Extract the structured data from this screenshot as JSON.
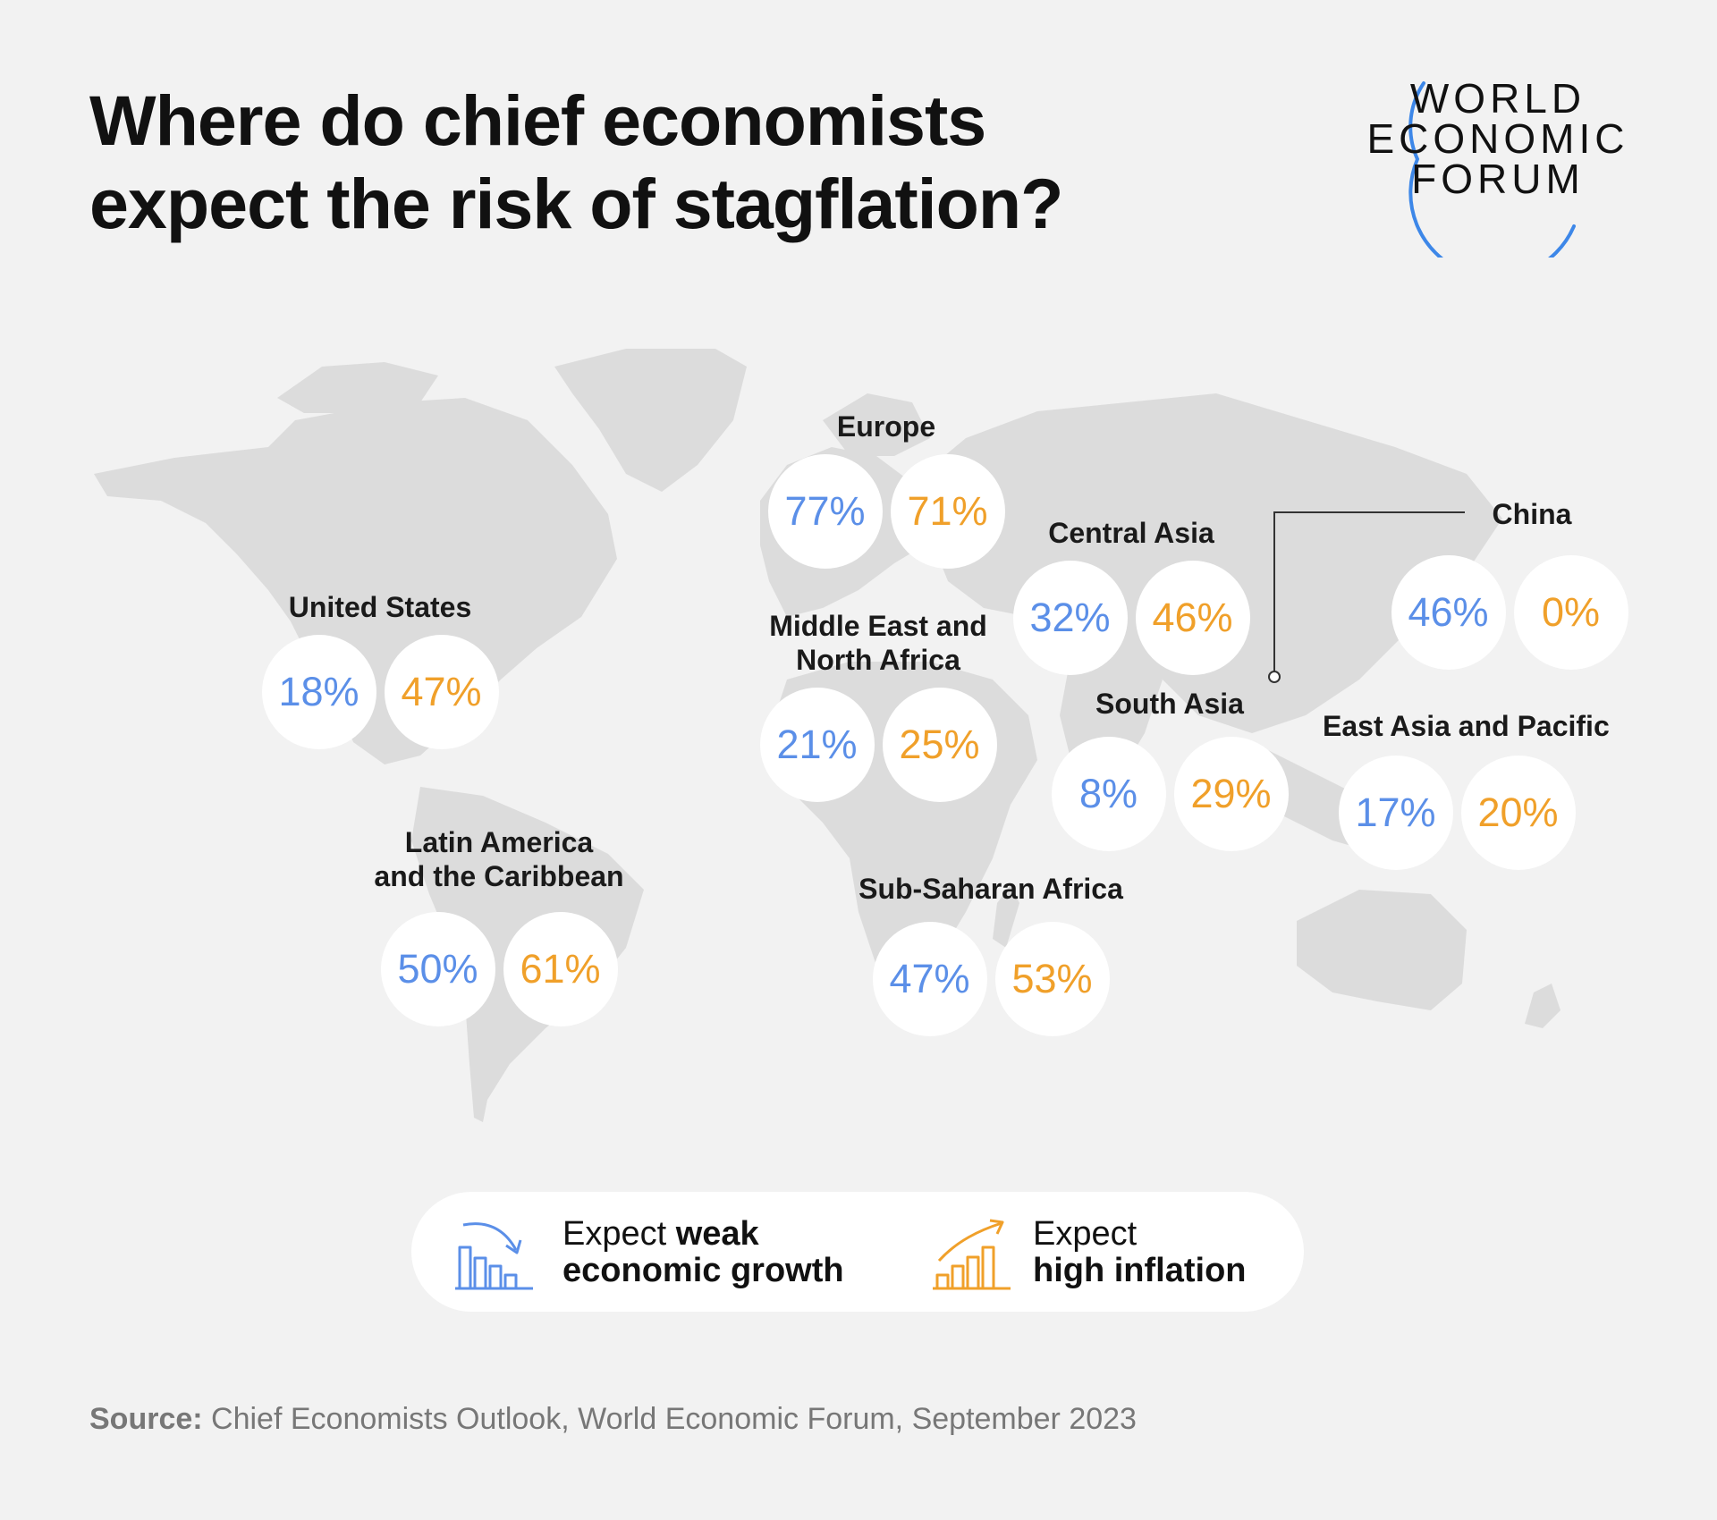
{
  "title": {
    "line1": "Where do chief economists",
    "line2": "expect the risk of stagflation?"
  },
  "logo": {
    "line1": "WORLD",
    "line2": "ECONOMIC",
    "line3": "FORUM",
    "arc_color": "#3d87e8"
  },
  "colors": {
    "background": "#f2f2f2",
    "land": "#dcdcdc",
    "growth": "#5b8fe8",
    "inflation": "#f0a02a"
  },
  "regions": {
    "europe": {
      "label": "Europe",
      "growth": "77%",
      "inflation": "71%"
    },
    "central_asia": {
      "label": "Central Asia",
      "growth": "32%",
      "inflation": "46%"
    },
    "china": {
      "label": "China",
      "growth": "46%",
      "inflation": "0%"
    },
    "united_states": {
      "label": "United States",
      "growth": "18%",
      "inflation": "47%"
    },
    "mena": {
      "label_line1": "Middle East and",
      "label_line2": "North Africa",
      "growth": "21%",
      "inflation": "25%"
    },
    "south_asia": {
      "label": "South Asia",
      "growth": "8%",
      "inflation": "29%"
    },
    "east_asia_pacific": {
      "label": "East Asia and Pacific",
      "growth": "17%",
      "inflation": "20%"
    },
    "latin_america": {
      "label_line1": "Latin America",
      "label_line2": "and the Caribbean",
      "growth": "50%",
      "inflation": "61%"
    },
    "sub_saharan_africa": {
      "label": "Sub-Saharan Africa",
      "growth": "47%",
      "inflation": "53%"
    }
  },
  "legend": {
    "growth": {
      "prefix": "Expect ",
      "bold_word": "weak",
      "line2": "economic growth",
      "icon": "falling-bar-chart-icon"
    },
    "inflation": {
      "line1": "Expect",
      "line2": "high inflation",
      "icon": "rising-bar-chart-icon"
    }
  },
  "source": {
    "label": "Source:",
    "text": " Chief Economists Outlook, World Economic Forum, September 2023"
  }
}
